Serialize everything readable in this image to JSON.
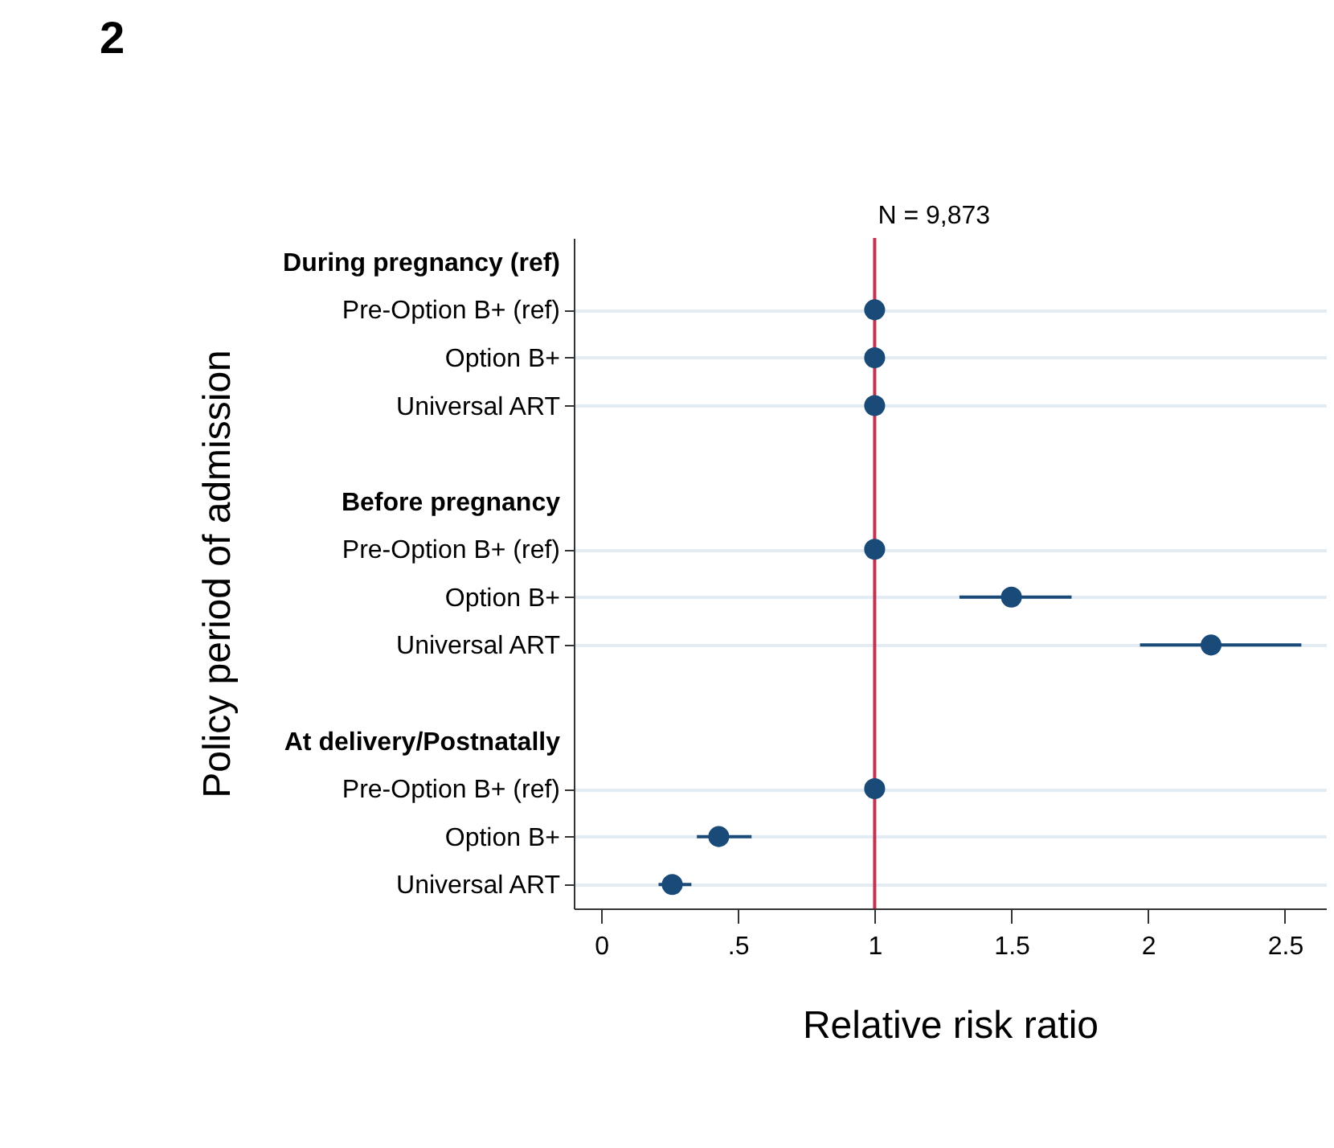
{
  "chart_data": {
    "type": "scatter",
    "title": "2",
    "xlabel": "Relative risk ratio",
    "ylabel": "Policy period of admission",
    "categories": [
      "During pregnancy (ref)",
      "Pre-Option B+ (ref)",
      "Option B+",
      "Universal ART",
      null,
      "Before pregnancy",
      "Pre-Option B+ (ref)",
      "Option B+",
      "Universal ART",
      null,
      "At delivery/Postnatally",
      "Pre-Option B+ (ref)",
      "Option B+",
      "Universal ART"
    ],
    "orientation": "horizontal",
    "series": [
      {
        "color": "#1a4a78",
        "values": [
          null,
          1,
          1,
          1,
          null,
          null,
          1,
          1.5,
          2.23,
          null,
          null,
          1,
          0.43,
          0.26
        ],
        "errors": [
          null,
          null,
          null,
          null,
          null,
          null,
          null,
          [
            1.31,
            1.72
          ],
          [
            1.97,
            2.56
          ],
          null,
          null,
          null,
          [
            0.35,
            0.55
          ],
          [
            0.21,
            0.33
          ]
        ]
      }
    ],
    "xlim": [
      -0.1,
      2.65
    ],
    "xticks": [
      0,
      {
        "value": 0.5,
        "label": ".5"
      },
      1,
      1.5,
      2,
      2.5
    ],
    "ref_lines": [
      {
        "axis": "x",
        "value": 1,
        "color": "#c8324f"
      }
    ],
    "annotations": [
      "N = 9,873"
    ],
    "grid": "y",
    "marker": "circle",
    "legend": false
  }
}
